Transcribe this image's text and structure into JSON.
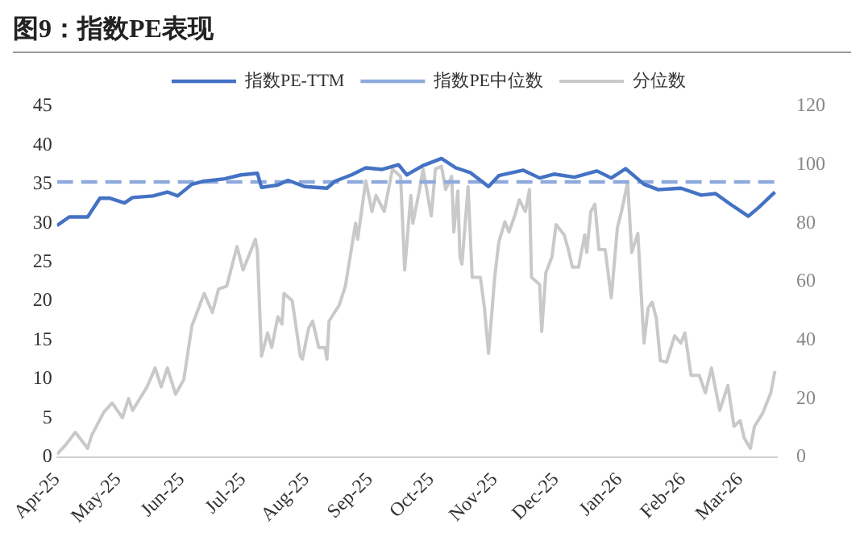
{
  "chart_data": {
    "type": "line",
    "title": "图9：指数PE表现",
    "xlim": [
      "2025-04-01",
      "2026-03-19"
    ],
    "xticks": [
      {
        "value": "2025-04-01",
        "label": "Apr-25"
      },
      {
        "value": "2025-05-01",
        "label": "May-25"
      },
      {
        "value": "2025-06-01",
        "label": "Jun-25"
      },
      {
        "value": "2025-07-01",
        "label": "Jul-25"
      },
      {
        "value": "2025-08-01",
        "label": "Aug-25"
      },
      {
        "value": "2025-09-01",
        "label": "Sep-25"
      },
      {
        "value": "2025-10-01",
        "label": "Oct-25"
      },
      {
        "value": "2025-11-01",
        "label": "Nov-25"
      },
      {
        "value": "2025-12-01",
        "label": "Dec-25"
      },
      {
        "value": "2026-01-01",
        "label": "Jan-26"
      },
      {
        "value": "2026-02-01",
        "label": "Feb-26"
      },
      {
        "value": "2026-03-01",
        "label": "Mar-26"
      }
    ],
    "ylim": [
      0,
      45
    ],
    "yticks": [
      0,
      5,
      10,
      15,
      20,
      25,
      30,
      35,
      40,
      45
    ],
    "y2lim": [
      0,
      120
    ],
    "y2ticks": [
      0,
      20,
      40,
      60,
      80,
      100,
      120
    ],
    "grid": false,
    "legend": "top",
    "marker": "none",
    "series": [
      {
        "name": "指数PE-TTM",
        "color": "#4472c4",
        "line_style": "solid",
        "x": [
          "2025-04-01",
          "2025-04-07",
          "2025-04-16",
          "2025-04-22",
          "2025-04-27",
          "2025-05-04",
          "2025-05-08",
          "2025-05-18",
          "2025-05-25",
          "2025-05-30",
          "2025-06-06",
          "2025-06-12",
          "2025-06-22",
          "2025-06-30",
          "2025-07-08",
          "2025-07-10",
          "2025-07-18",
          "2025-07-23",
          "2025-07-31",
          "2025-08-11",
          "2025-08-15",
          "2025-08-23",
          "2025-08-30",
          "2025-09-07",
          "2025-09-15",
          "2025-09-19",
          "2025-09-27",
          "2025-10-06",
          "2025-10-13",
          "2025-10-20",
          "2025-10-29",
          "2025-11-03",
          "2025-11-15",
          "2025-11-23",
          "2025-11-30",
          "2025-12-10",
          "2025-12-21",
          "2025-12-28",
          "2026-01-04",
          "2026-01-13",
          "2026-01-20",
          "2026-01-31",
          "2026-02-10",
          "2026-02-17",
          "2026-02-25",
          "2026-03-05",
          "2026-03-10",
          "2026-03-18"
        ],
        "values": [
          29.7,
          30.8,
          30.8,
          33.2,
          33.2,
          32.6,
          33.3,
          33.5,
          34.0,
          33.5,
          35.0,
          35.4,
          35.7,
          36.2,
          36.4,
          34.6,
          34.9,
          35.5,
          34.7,
          34.5,
          35.4,
          36.2,
          37.1,
          36.9,
          37.5,
          36.2,
          37.4,
          38.3,
          37.1,
          36.5,
          34.7,
          36.1,
          36.8,
          35.8,
          36.3,
          35.9,
          36.7,
          35.8,
          37.0,
          35.0,
          34.3,
          34.5,
          33.6,
          33.8,
          32.3,
          30.9,
          32.0,
          34.0
        ]
      },
      {
        "name": "指数PE中位数",
        "color": "#8faadc",
        "line_style": "dashed",
        "x": [
          "2025-04-01",
          "2026-03-19"
        ],
        "values": [
          35.3,
          35.3
        ]
      },
      {
        "name": "分位数",
        "color": "#c9c9c9",
        "line_style": "solid",
        "axis": "y2",
        "x": [
          "2025-04-01",
          "2025-04-05",
          "2025-04-10",
          "2025-04-16",
          "2025-04-18",
          "2025-04-24",
          "2025-04-28",
          "2025-05-03",
          "2025-05-06",
          "2025-05-08",
          "2025-05-15",
          "2025-05-19",
          "2025-05-22",
          "2025-05-25",
          "2025-05-29",
          "2025-06-02",
          "2025-06-06",
          "2025-06-09",
          "2025-06-12",
          "2025-06-16",
          "2025-06-19",
          "2025-06-23",
          "2025-06-28",
          "2025-07-01",
          "2025-07-07",
          "2025-07-08",
          "2025-07-10",
          "2025-07-13",
          "2025-07-15",
          "2025-07-18",
          "2025-07-20",
          "2025-07-21",
          "2025-07-25",
          "2025-07-29",
          "2025-07-30",
          "2025-08-02",
          "2025-08-04",
          "2025-08-07",
          "2025-08-10",
          "2025-08-11",
          "2025-08-12",
          "2025-08-17",
          "2025-08-20",
          "2025-08-25",
          "2025-08-26",
          "2025-08-30",
          "2025-09-02",
          "2025-09-04",
          "2025-09-08",
          "2025-09-12",
          "2025-09-16",
          "2025-09-18",
          "2025-09-21",
          "2025-09-22",
          "2025-09-25",
          "2025-09-27",
          "2025-10-01",
          "2025-10-03",
          "2025-10-06",
          "2025-10-08",
          "2025-10-11",
          "2025-10-12",
          "2025-10-14",
          "2025-10-15",
          "2025-10-16",
          "2025-10-19",
          "2025-10-21",
          "2025-10-25",
          "2025-10-27",
          "2025-10-29",
          "2025-11-01",
          "2025-11-03",
          "2025-11-06",
          "2025-11-08",
          "2025-11-11",
          "2025-11-13",
          "2025-11-16",
          "2025-11-18",
          "2025-11-19",
          "2025-11-23",
          "2025-11-24",
          "2025-11-26",
          "2025-11-29",
          "2025-12-01",
          "2025-12-05",
          "2025-12-07",
          "2025-12-09",
          "2025-12-12",
          "2025-12-15",
          "2025-12-16",
          "2025-12-18",
          "2025-12-20",
          "2025-12-22",
          "2025-12-25",
          "2025-12-28",
          "2025-12-31",
          "2026-01-02",
          "2026-01-05",
          "2026-01-07",
          "2026-01-10",
          "2026-01-13",
          "2026-01-15",
          "2026-01-17",
          "2026-01-19",
          "2026-01-21",
          "2026-01-24",
          "2026-01-28",
          "2026-01-31",
          "2026-02-02",
          "2026-02-05",
          "2026-02-09",
          "2026-02-12",
          "2026-02-15",
          "2026-02-19",
          "2026-02-23",
          "2026-02-26",
          "2026-03-01",
          "2026-03-03",
          "2026-03-06",
          "2026-03-08",
          "2026-03-12",
          "2026-03-16",
          "2026-03-18"
        ],
        "values": [
          1,
          4,
          8.5,
          3,
          7.5,
          15.5,
          18.5,
          13.5,
          20,
          16,
          24,
          30.5,
          24,
          30.5,
          21.5,
          26.5,
          45,
          50.5,
          56,
          49.5,
          57.5,
          58.5,
          72,
          64,
          74.5,
          70.5,
          34.5,
          42.5,
          37.5,
          48,
          45.5,
          56,
          53.5,
          34.5,
          33.5,
          44,
          46.5,
          37.5,
          37.5,
          33.5,
          46.5,
          52,
          58.5,
          80,
          74.5,
          94.5,
          84,
          89.5,
          84,
          98.5,
          96,
          64,
          89.5,
          80,
          90.5,
          98.5,
          82.5,
          98.5,
          99.5,
          91.5,
          96,
          77,
          91,
          68.5,
          66,
          92.5,
          61.5,
          61.5,
          51,
          35.5,
          61.5,
          73.5,
          80.5,
          77,
          83,
          88,
          84,
          91.5,
          61.5,
          59,
          43,
          63,
          68.5,
          79.5,
          76,
          71,
          65,
          65,
          76,
          70,
          84,
          86.5,
          71,
          71,
          54.5,
          78.5,
          84,
          94,
          70,
          76.5,
          39,
          51,
          53,
          47.5,
          33,
          32.5,
          41.5,
          39,
          42.5,
          28,
          28,
          22,
          30.5,
          16,
          24.5,
          10.5,
          12.5,
          6.5,
          3,
          10.5,
          15,
          22,
          29.5
        ]
      }
    ]
  }
}
